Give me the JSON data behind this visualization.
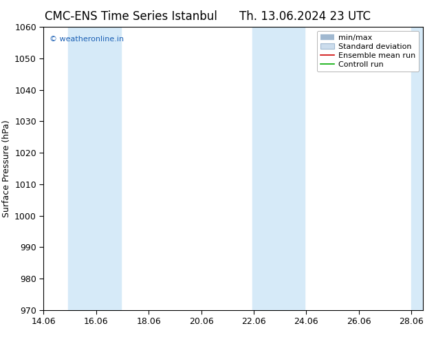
{
  "title_left": "CMC-ENS Time Series Istanbul",
  "title_right": "Th. 13.06.2024 23 UTC",
  "ylabel": "Surface Pressure (hPa)",
  "ylim": [
    970,
    1060
  ],
  "yticks": [
    970,
    980,
    990,
    1000,
    1010,
    1020,
    1030,
    1040,
    1050,
    1060
  ],
  "xlim_num": [
    14.06,
    28.5
  ],
  "xtick_labels": [
    "14.06",
    "16.06",
    "18.06",
    "20.06",
    "22.06",
    "24.06",
    "26.06",
    "28.06"
  ],
  "xtick_positions": [
    14.06,
    16.06,
    18.06,
    20.06,
    22.06,
    24.06,
    26.06,
    28.06
  ],
  "shaded_bands": [
    {
      "xmin": 15.0,
      "xmax": 17.0,
      "color": "#d6eaf8"
    },
    {
      "xmin": 22.0,
      "xmax": 24.0,
      "color": "#d6eaf8"
    },
    {
      "xmin": 28.06,
      "xmax": 28.5,
      "color": "#d6eaf8"
    }
  ],
  "watermark_text": "© weatheronline.in",
  "watermark_color": "#1a5fb4",
  "legend_labels": [
    "min/max",
    "Standard deviation",
    "Ensemble mean run",
    "Controll run"
  ],
  "legend_line_color": "#a0b8d0",
  "legend_patch_color": "#ccdded",
  "legend_ensemble_color": "#cc0000",
  "legend_control_color": "#00aa00",
  "background_color": "#ffffff",
  "plot_bg_color": "#ffffff",
  "title_fontsize": 12,
  "axis_label_fontsize": 9,
  "tick_fontsize": 9,
  "legend_fontsize": 8
}
